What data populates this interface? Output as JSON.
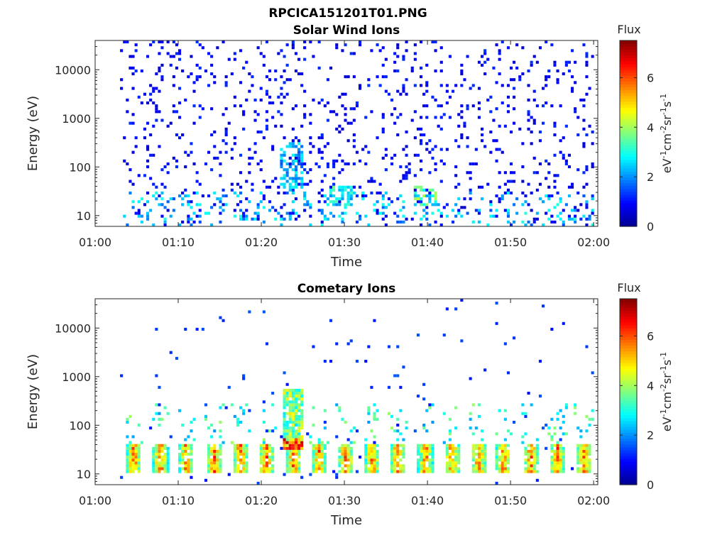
{
  "figure_title": "RPCICA151201T01.PNG",
  "colors": {
    "colormap": [
      "#00008f",
      "#0000ff",
      "#0080ff",
      "#00ffff",
      "#80ff80",
      "#ffff00",
      "#ff8000",
      "#ff0000",
      "#800000"
    ],
    "axis": "#262626"
  },
  "chart_data": [
    {
      "type": "heatmap",
      "title": "Solar Wind Ions",
      "xlabel": "Time",
      "ylabel": "Energy (eV)",
      "x_tick_labels": [
        "01:00",
        "01:10",
        "01:20",
        "01:30",
        "01:40",
        "01:50",
        "02:00"
      ],
      "x_range_minutes": [
        0,
        60.5
      ],
      "y_scale": "log",
      "y_range_eV": [
        6,
        40000
      ],
      "y_tick_labels": [
        "10",
        "100",
        "1000",
        "10000"
      ],
      "y_tick_values": [
        10,
        100,
        1000,
        10000
      ],
      "colorbar": {
        "title": "Flux",
        "label": "eV-1cm-2sr-1s-1",
        "range": [
          0,
          7.5
        ],
        "tick_labels": [
          "0",
          "2",
          "4",
          "6"
        ],
        "tick_values": [
          0,
          2,
          4,
          6
        ]
      },
      "data_start_minute": 3,
      "scan_period_minutes": 3.2,
      "background_flux": 1.0,
      "enhancements": [
        {
          "minute": 23.5,
          "energy_eV": [
            30,
            300
          ],
          "flux": 2.5
        },
        {
          "minute": 29.5,
          "energy_eV": [
            15,
            40
          ],
          "flux": 3.2
        },
        {
          "minute": 39.5,
          "energy_eV": [
            15,
            40
          ],
          "flux": 3.5
        }
      ]
    },
    {
      "type": "heatmap",
      "title": "Cometary Ions",
      "xlabel": "Time",
      "ylabel": "Energy (eV)",
      "x_tick_labels": [
        "01:00",
        "01:10",
        "01:20",
        "01:30",
        "01:40",
        "01:50",
        "02:00"
      ],
      "x_range_minutes": [
        0,
        60.5
      ],
      "y_scale": "log",
      "y_range_eV": [
        6,
        40000
      ],
      "y_tick_labels": [
        "10",
        "100",
        "1000",
        "10000"
      ],
      "y_tick_values": [
        10,
        100,
        1000,
        10000
      ],
      "colorbar": {
        "title": "Flux",
        "label": "eV-1cm-2sr-1s-1",
        "range": [
          0,
          7.5
        ],
        "tick_labels": [
          "0",
          "2",
          "4",
          "6"
        ],
        "tick_values": [
          0,
          2,
          4,
          6
        ]
      },
      "data_start_minute": 3,
      "band_centers_minutes": [
        4.5,
        7.7,
        10.8,
        14.2,
        17.3,
        20.5,
        23.7,
        26.8,
        30.0,
        33.2,
        36.3,
        39.6,
        42.8,
        46.0,
        49.0,
        52.3,
        55.5,
        58.7
      ],
      "band_energy_eV": [
        10,
        40
      ],
      "band_peak_flux": 6.0,
      "enhancements": [
        {
          "minute": 23.7,
          "energy_eV": [
            30,
            500
          ],
          "flux": 4.5
        },
        {
          "minute": 23.7,
          "energy_eV": [
            30,
            50
          ],
          "flux": 6.5
        }
      ]
    }
  ]
}
